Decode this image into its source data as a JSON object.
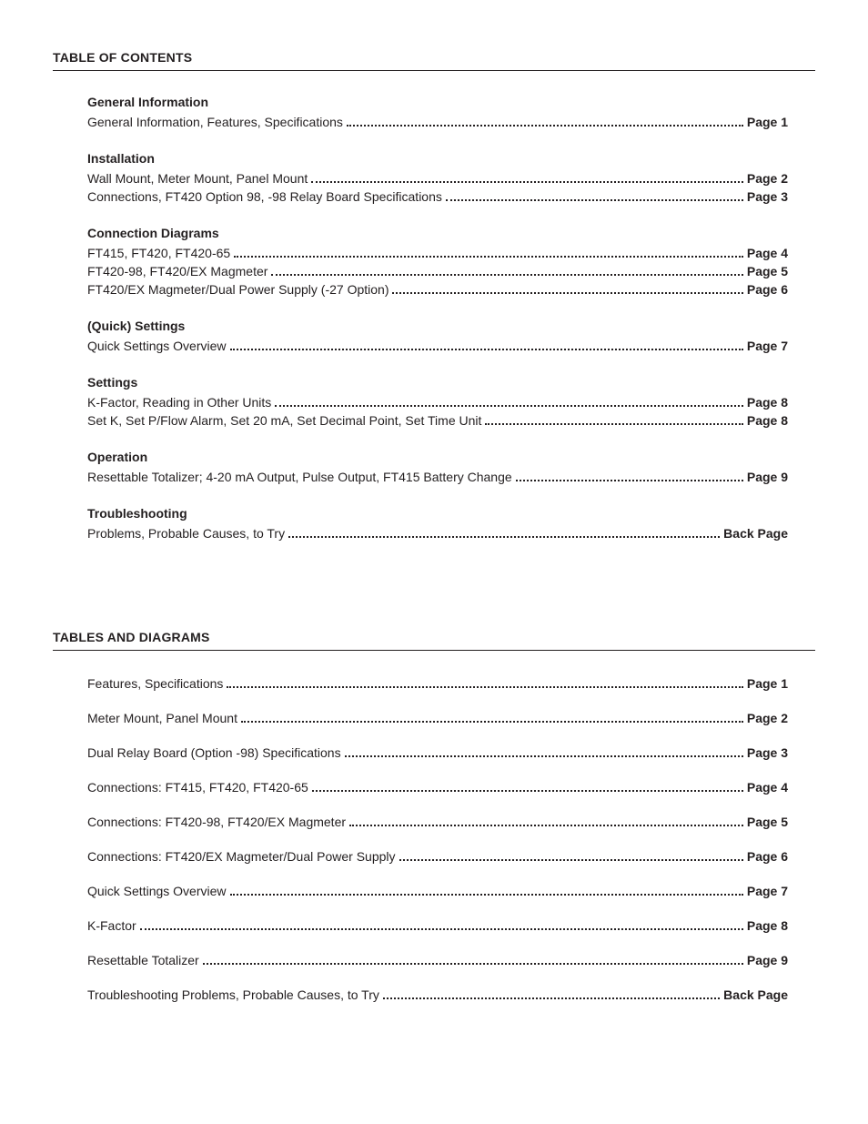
{
  "headers": {
    "toc": "TABLE OF CONTENTS",
    "tad": "TABLES AND DIAGRAMS"
  },
  "toc": {
    "groups": [
      {
        "title": "General Information",
        "items": [
          {
            "label": "General Information, Features, Specifications",
            "page": "Page 1"
          }
        ]
      },
      {
        "title": "Installation",
        "items": [
          {
            "label": "Wall Mount, Meter Mount, Panel Mount",
            "page": "Page 2"
          },
          {
            "label": "Connections, FT420 Option 98, -98 Relay Board Specifications",
            "page": "Page 3"
          }
        ]
      },
      {
        "title": "Connection Diagrams",
        "items": [
          {
            "label": "FT415, FT420, FT420-65",
            "page": "Page 4"
          },
          {
            "label": "FT420-98, FT420/EX Magmeter",
            "page": "Page 5"
          },
          {
            "label": "FT420/EX Magmeter/Dual Power Supply (-27 Option)",
            "page": "Page 6"
          }
        ]
      },
      {
        "title": "(Quick) Settings",
        "items": [
          {
            "label": "Quick Settings Overview",
            "page": "Page 7"
          }
        ]
      },
      {
        "title": "Settings",
        "items": [
          {
            "label": "K-Factor, Reading in Other Units",
            "page": "Page 8"
          },
          {
            "label": "Set K, Set P/Flow Alarm, Set 20 mA, Set Decimal Point, Set Time Unit",
            "page": "Page 8"
          }
        ]
      },
      {
        "title": "Operation",
        "items": [
          {
            "label": "Resettable Totalizer; 4-20 mA Output, Pulse Output, FT415 Battery Change",
            "page": "Page 9"
          }
        ]
      },
      {
        "title": "Troubleshooting",
        "items": [
          {
            "label": "Problems, Probable Causes, to Try",
            "page": "Back Page"
          }
        ]
      }
    ]
  },
  "tad": {
    "items": [
      {
        "label": "Features, Specifications",
        "page": "Page 1"
      },
      {
        "label": "Meter Mount, Panel Mount",
        "page": "Page 2"
      },
      {
        "label": "Dual Relay Board (Option -98) Specifications",
        "page": "Page 3"
      },
      {
        "label": "Connections: FT415, FT420, FT420-65",
        "page": "Page 4"
      },
      {
        "label": "Connections: FT420-98, FT420/EX Magmeter",
        "page": "Page 5"
      },
      {
        "label": "Connections: FT420/EX Magmeter/Dual Power Supply",
        "page": "Page 6"
      },
      {
        "label": "Quick Settings Overview",
        "page": "Page 7"
      },
      {
        "label": "K-Factor",
        "page": "Page 8"
      },
      {
        "label": "Resettable Totalizer",
        "page": "Page 9"
      },
      {
        "label": "Troubleshooting Problems, Probable Causes, to Try",
        "page": "Back Page"
      }
    ]
  }
}
